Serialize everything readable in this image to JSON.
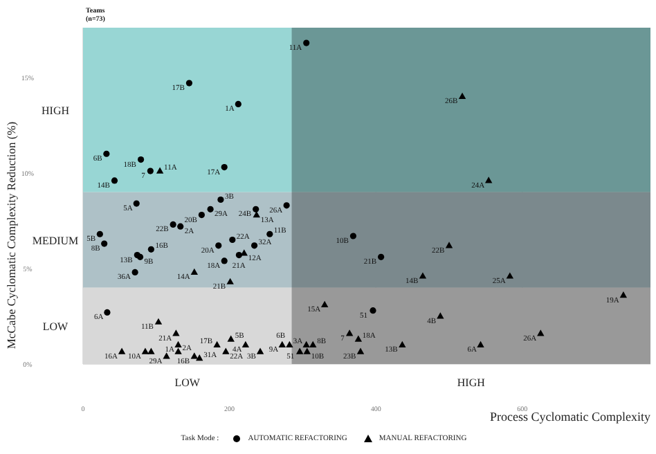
{
  "chart_data": {
    "type": "scatter",
    "xlabel": "Process Cyclomatic Complexity",
    "ylabel": "McCabe Cyclomatic Complexity Reduction (%)",
    "legend_title": "Task Mode :",
    "legend": "bottom",
    "grid": true,
    "xlim": [
      0,
      775
    ],
    "xticks": [
      0,
      200,
      400,
      600
    ],
    "ylim": [
      0,
      17.6
    ],
    "yticks": [
      {
        "value": 0,
        "label": "0%"
      },
      {
        "value": 5,
        "label": "5%"
      },
      {
        "value": 10,
        "label": "10%"
      },
      {
        "value": 15,
        "label": "15%"
      }
    ],
    "bands": [
      {
        "axis": "y",
        "from": 0,
        "to": 4,
        "label": "LOW",
        "color": "#e4e4e4"
      },
      {
        "axis": "y",
        "from": 4,
        "to": 9,
        "label": "MEDIUM",
        "color": "#b8ccd2"
      },
      {
        "axis": "y",
        "from": 9,
        "to": 17.6,
        "label": "HIGH",
        "color": "#a0e2e0"
      },
      {
        "axis": "x",
        "from": 0,
        "to": 285,
        "label": "LOW",
        "color": "#f2f2f2"
      },
      {
        "axis": "x",
        "from": 285,
        "to": 775,
        "label": "HIGH",
        "color": "#ababab"
      }
    ],
    "series": [
      {
        "name": "AUTOMATIC REFACTORING",
        "color": "#000000",
        "marker": "circle",
        "x": [
          305,
          145,
          212,
          32,
          79,
          92,
          43,
          193,
          278,
          188,
          73,
          174,
          236,
          162,
          123,
          133,
          23,
          29,
          74,
          78,
          93,
          71,
          204,
          185,
          213,
          234,
          255,
          193,
          369,
          407,
          396,
          33
        ],
        "values": [
          16.8,
          14.7,
          13.6,
          11.0,
          10.7,
          10.1,
          9.6,
          10.3,
          8.3,
          8.6,
          8.4,
          8.1,
          8.1,
          7.8,
          7.3,
          7.2,
          6.8,
          6.3,
          5.7,
          5.6,
          6.0,
          4.8,
          6.5,
          6.2,
          5.7,
          6.2,
          6.8,
          5.4,
          6.7,
          5.6,
          2.8,
          2.7
        ]
      },
      {
        "name": "MANUAL REFACTORING",
        "color": "#000000",
        "marker": "triangle",
        "x": [
          105,
          518,
          554,
          220,
          152,
          201,
          237,
          500,
          464,
          583,
          738,
          330,
          488,
          625,
          364,
          376,
          436,
          543,
          379,
          296,
          306,
          305,
          314,
          272,
          282,
          103,
          127,
          130,
          53,
          85,
          93,
          130,
          114,
          152,
          159,
          183,
          202,
          195,
          222,
          242
        ],
        "values": [
          10.1,
          14.0,
          9.6,
          5.8,
          4.8,
          4.3,
          7.8,
          6.2,
          4.6,
          4.6,
          3.6,
          3.1,
          2.5,
          1.6,
          1.6,
          1.3,
          1.0,
          1.0,
          0.65,
          0.65,
          0.65,
          1.0,
          1.0,
          1.0,
          1.0,
          2.2,
          1.6,
          1.0,
          0.65,
          0.65,
          0.65,
          0.65,
          0.4,
          0.4,
          0.3,
          1.0,
          1.3,
          0.65,
          1.0,
          0.65
        ]
      }
    ],
    "annotations": [
      "Teams\n(n=73)",
      {
        "text": "11A",
        "x": 305,
        "y": 16.8
      },
      {
        "text": "17B",
        "x": 145,
        "y": 14.7
      },
      {
        "text": "1A",
        "x": 212,
        "y": 13.6
      },
      {
        "text": "6B",
        "x": 32,
        "y": 11.0
      },
      {
        "text": "18B",
        "x": 79,
        "y": 10.7
      },
      {
        "text": "7",
        "x": 92,
        "y": 10.1
      },
      {
        "text": "14B",
        "x": 43,
        "y": 9.6
      },
      {
        "text": "17A",
        "x": 193,
        "y": 10.3
      },
      {
        "text": "26A",
        "x": 278,
        "y": 8.3
      },
      {
        "text": "3B",
        "x": 188,
        "y": 8.6
      },
      {
        "text": "5A",
        "x": 73,
        "y": 8.4
      },
      {
        "text": "29A",
        "x": 174,
        "y": 8.1
      },
      {
        "text": "24B",
        "x": 236,
        "y": 8.1
      },
      {
        "text": "20B",
        "x": 162,
        "y": 7.8
      },
      {
        "text": "22B",
        "x": 123,
        "y": 7.3
      },
      {
        "text": "2A",
        "x": 133,
        "y": 7.2
      },
      {
        "text": "5B",
        "x": 23,
        "y": 6.8
      },
      {
        "text": "8B",
        "x": 29,
        "y": 6.3
      },
      {
        "text": "13B",
        "x": 74,
        "y": 5.7
      },
      {
        "text": "9B",
        "x": 78,
        "y": 5.6
      },
      {
        "text": "16B",
        "x": 93,
        "y": 6.0
      },
      {
        "text": "36A",
        "x": 71,
        "y": 4.8
      },
      {
        "text": "22A",
        "x": 204,
        "y": 6.5
      },
      {
        "text": "20A",
        "x": 185,
        "y": 6.2
      },
      {
        "text": "21A",
        "x": 213,
        "y": 5.7
      },
      {
        "text": "32A",
        "x": 234,
        "y": 6.2
      },
      {
        "text": "11B",
        "x": 255,
        "y": 6.8
      },
      {
        "text": "18A",
        "x": 193,
        "y": 5.4
      },
      {
        "text": "10B",
        "x": 369,
        "y": 6.7
      },
      {
        "text": "21B",
        "x": 407,
        "y": 5.6
      },
      {
        "text": "51",
        "x": 396,
        "y": 2.8
      },
      {
        "text": "6A",
        "x": 33,
        "y": 2.7
      },
      {
        "text": "11A",
        "x": 105,
        "y": 10.1
      },
      {
        "text": "26B",
        "x": 518,
        "y": 14.0
      },
      {
        "text": "24A",
        "x": 554,
        "y": 9.6
      },
      {
        "text": "12A",
        "x": 220,
        "y": 5.8
      },
      {
        "text": "14A",
        "x": 152,
        "y": 4.8
      },
      {
        "text": "21B",
        "x": 201,
        "y": 4.3
      },
      {
        "text": "13A",
        "x": 237,
        "y": 7.8
      },
      {
        "text": "22B",
        "x": 500,
        "y": 6.2
      },
      {
        "text": "14B",
        "x": 464,
        "y": 4.6
      },
      {
        "text": "25A",
        "x": 583,
        "y": 4.6
      },
      {
        "text": "19A",
        "x": 738,
        "y": 3.6
      },
      {
        "text": "15A",
        "x": 330,
        "y": 3.1
      },
      {
        "text": "4B",
        "x": 488,
        "y": 2.5
      },
      {
        "text": "26A",
        "x": 625,
        "y": 1.6
      },
      {
        "text": "7",
        "x": 364,
        "y": 1.6
      },
      {
        "text": "18A",
        "x": 376,
        "y": 1.3
      },
      {
        "text": "13B",
        "x": 436,
        "y": 1.0
      },
      {
        "text": "6A",
        "x": 543,
        "y": 1.0
      },
      {
        "text": "23B",
        "x": 379,
        "y": 0.65
      },
      {
        "text": "51",
        "x": 296,
        "y": 0.65
      },
      {
        "text": "10B",
        "x": 306,
        "y": 0.65
      },
      {
        "text": "3A",
        "x": 305,
        "y": 1.0
      },
      {
        "text": "8B",
        "x": 314,
        "y": 1.0
      },
      {
        "text": "9A",
        "x": 272,
        "y": 1.0
      },
      {
        "text": "6B",
        "x": 282,
        "y": 1.0
      },
      {
        "text": "11B",
        "x": 103,
        "y": 2.2
      },
      {
        "text": "21A",
        "x": 127,
        "y": 1.6
      },
      {
        "text": "1A",
        "x": 130,
        "y": 1.0
      },
      {
        "text": "16A",
        "x": 53,
        "y": 0.65
      },
      {
        "text": "10A",
        "x": 85,
        "y": 0.65
      },
      {
        "text": "2A",
        "x": 130,
        "y": 0.65
      },
      {
        "text": "29A",
        "x": 114,
        "y": 0.4
      },
      {
        "text": "16B",
        "x": 152,
        "y": 0.4
      },
      {
        "text": "31A",
        "x": 159,
        "y": 0.3
      },
      {
        "text": "17B",
        "x": 183,
        "y": 1.0
      },
      {
        "text": "5B",
        "x": 202,
        "y": 1.3
      },
      {
        "text": "22A",
        "x": 195,
        "y": 0.65
      },
      {
        "text": "4A",
        "x": 222,
        "y": 1.0
      },
      {
        "text": "3B",
        "x": 242,
        "y": 0.65
      }
    ]
  }
}
